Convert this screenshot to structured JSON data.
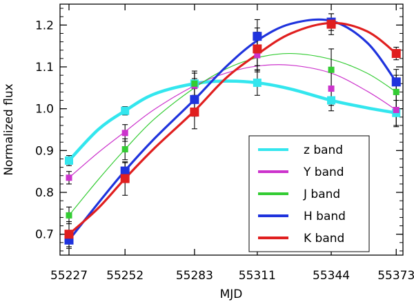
{
  "chart_data": {
    "type": "scatter",
    "xlabel": "MJD",
    "ylabel": "Normalized flux",
    "xlim": [
      55223,
      55376
    ],
    "ylim": [
      0.65,
      1.25
    ],
    "xticks": [
      55227,
      55252,
      55283,
      55311,
      55344,
      55373
    ],
    "yticks": [
      0.7,
      0.8,
      0.9,
      1.0,
      1.1,
      1.2
    ],
    "ytick_labels": [
      "0.7",
      "0.8",
      "0.9",
      "1.0",
      "1.1",
      "1.2"
    ],
    "legend_position": "bottom-right",
    "series": [
      {
        "name": "z band",
        "color": "#33e6ee",
        "x": [
          55227,
          55252,
          55283,
          55311,
          55344,
          55373
        ],
        "y": [
          0.876,
          0.995,
          1.06,
          1.062,
          1.02,
          0.99
        ],
        "err": [
          0.012,
          0.01,
          0.012,
          0.03,
          0.025,
          0.03
        ],
        "curve_x": [
          55227,
          55240,
          55252,
          55265,
          55283,
          55297,
          55311,
          55326,
          55344,
          55360,
          55373
        ],
        "curve_y": [
          0.876,
          0.95,
          0.995,
          1.035,
          1.06,
          1.066,
          1.062,
          1.047,
          1.02,
          1.002,
          0.99
        ]
      },
      {
        "name": "Y band",
        "color": "#cc33cc",
        "x": [
          55227,
          55252,
          55283,
          55311,
          55344,
          55373
        ],
        "y": [
          0.835,
          0.942,
          1.055,
          1.128,
          1.048,
          0.997
        ],
        "err": [
          0.015,
          0.02,
          0.03,
          0.04,
          0.04,
          0.04
        ],
        "curve_x": [
          55227,
          55240,
          55252,
          55265,
          55283,
          55297,
          55311,
          55326,
          55344,
          55360,
          55373
        ],
        "curve_y": [
          0.835,
          0.895,
          0.945,
          0.998,
          1.055,
          1.085,
          1.102,
          1.104,
          1.085,
          1.042,
          0.997
        ]
      },
      {
        "name": "J band",
        "color": "#33cc33",
        "x": [
          55227,
          55252,
          55283,
          55311,
          55344,
          55373
        ],
        "y": [
          0.745,
          0.903,
          1.06,
          1.143,
          1.093,
          1.04
        ],
        "err": [
          0.02,
          0.025,
          0.03,
          0.04,
          0.05,
          0.04
        ],
        "curve_x": [
          55227,
          55240,
          55252,
          55265,
          55283,
          55297,
          55311,
          55326,
          55344,
          55360,
          55373
        ],
        "curve_y": [
          0.745,
          0.83,
          0.903,
          0.975,
          1.05,
          1.095,
          1.122,
          1.132,
          1.118,
          1.085,
          1.04
        ]
      },
      {
        "name": "H band",
        "color": "#1f33dd",
        "x": [
          55227,
          55252,
          55283,
          55311,
          55344,
          55373
        ],
        "y": [
          0.686,
          0.851,
          1.022,
          1.173,
          1.207,
          1.064
        ],
        "err": [
          0.02,
          0.02,
          0.04,
          0.04,
          0.02,
          0.03
        ],
        "curve_x": [
          55227,
          55240,
          55252,
          55265,
          55283,
          55297,
          55311,
          55326,
          55344,
          55360,
          55373
        ],
        "curve_y": [
          0.686,
          0.774,
          0.852,
          0.928,
          1.022,
          1.1,
          1.163,
          1.203,
          1.21,
          1.158,
          1.064
        ]
      },
      {
        "name": "K band",
        "color": "#e01f1f",
        "x": [
          55227,
          55252,
          55283,
          55311,
          55344,
          55373
        ],
        "y": [
          0.7,
          0.833,
          0.992,
          1.143,
          1.202,
          1.132
        ],
        "err": [
          0.03,
          0.04,
          0.04,
          0.05,
          0.025,
          0.015
        ],
        "curve_x": [
          55227,
          55240,
          55252,
          55265,
          55283,
          55297,
          55311,
          55326,
          55344,
          55360,
          55373
        ],
        "curve_y": [
          0.7,
          0.762,
          0.833,
          0.905,
          0.995,
          1.073,
          1.13,
          1.18,
          1.205,
          1.185,
          1.132
        ]
      }
    ]
  }
}
